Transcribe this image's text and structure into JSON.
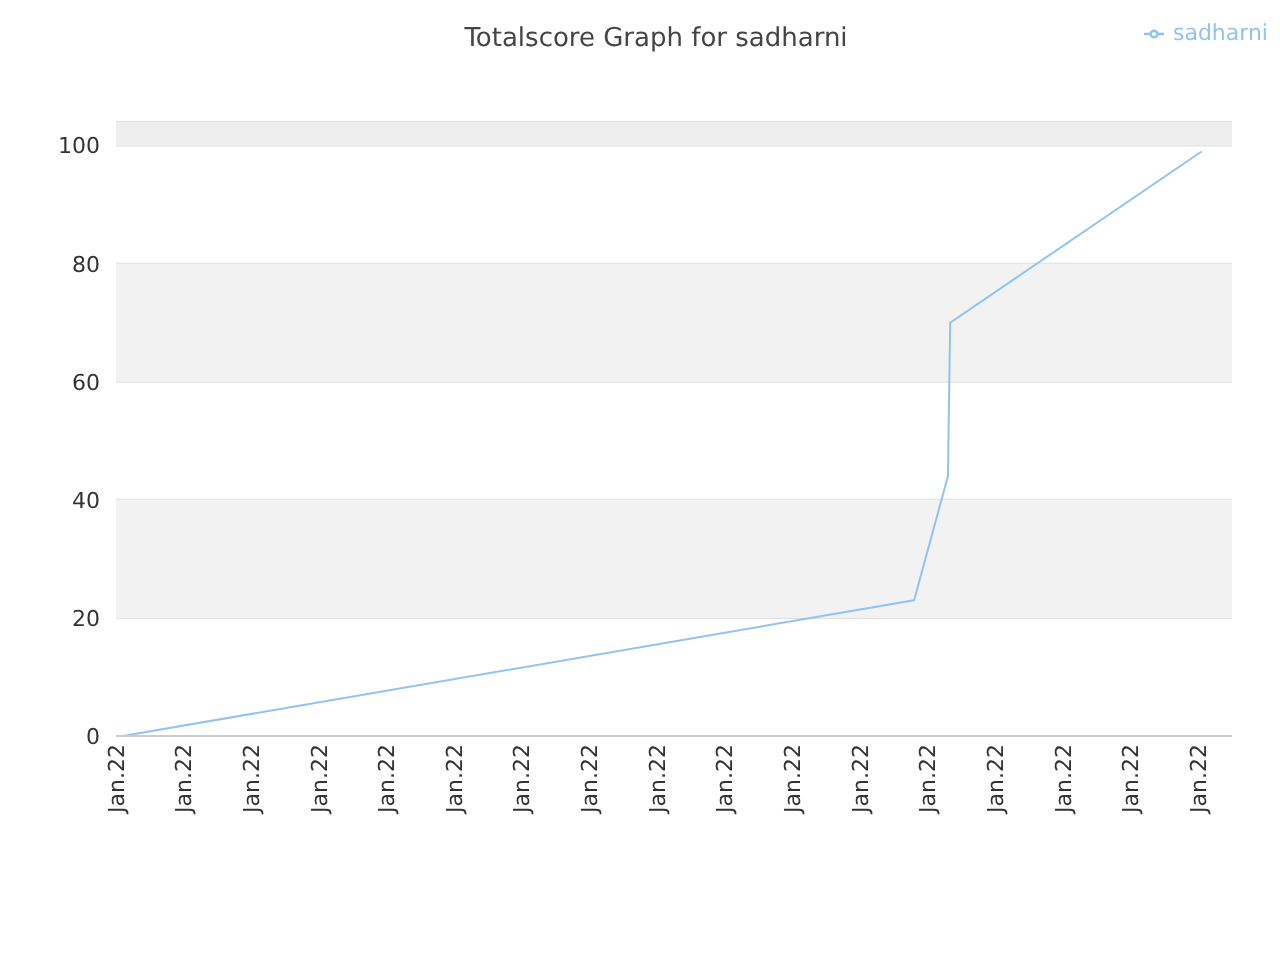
{
  "chart_data": {
    "type": "line",
    "title": "Totalscore Graph for sadharni",
    "x": [
      "--01-22T00:06",
      "--01-22T11:48",
      "--01-22T12:18",
      "--01-22T12:19",
      "--01-22T12:20",
      "--01-22T16:03"
    ],
    "series": [
      {
        "name": "sadharni",
        "color": "#90c3f0",
        "values": [
          0,
          23,
          44,
          57,
          70,
          99
        ]
      }
    ],
    "xlim": [
      "--01-22T00:00",
      "--01-22T16:30"
    ],
    "xticks": [
      {
        "value": "--01-22T00:00",
        "label": "Jan.22"
      },
      {
        "value": "--01-22T01:00",
        "label": "Jan.22"
      },
      {
        "value": "--01-22T02:00",
        "label": "Jan.22"
      },
      {
        "value": "--01-22T03:00",
        "label": "Jan.22"
      },
      {
        "value": "--01-22T04:00",
        "label": "Jan.22"
      },
      {
        "value": "--01-22T05:00",
        "label": "Jan.22"
      },
      {
        "value": "--01-22T06:00",
        "label": "Jan.22"
      },
      {
        "value": "--01-22T07:00",
        "label": "Jan.22"
      },
      {
        "value": "--01-22T08:00",
        "label": "Jan.22"
      },
      {
        "value": "--01-22T09:00",
        "label": "Jan.22"
      },
      {
        "value": "--01-22T10:00",
        "label": "Jan.22"
      },
      {
        "value": "--01-22T11:00",
        "label": "Jan.22"
      },
      {
        "value": "--01-22T12:00",
        "label": "Jan.22"
      },
      {
        "value": "--01-22T13:00",
        "label": "Jan.22"
      },
      {
        "value": "--01-22T14:00",
        "label": "Jan.22"
      },
      {
        "value": "--01-22T15:00",
        "label": "Jan.22"
      },
      {
        "value": "--01-22T16:00",
        "label": "Jan.22"
      }
    ],
    "ylim": [
      0,
      104
    ],
    "yticks": [
      0,
      20,
      40,
      60,
      80,
      100
    ],
    "bands": [
      {
        "axis": "y",
        "from": 20,
        "to": 40,
        "color": "#f2f2f2"
      },
      {
        "axis": "y",
        "from": 60,
        "to": 80,
        "color": "#f2f2f2"
      },
      {
        "axis": "y",
        "from": 100,
        "to": 104,
        "color": "#eeeeee"
      }
    ],
    "grid": "y",
    "legend": "top right",
    "marker": "none",
    "line_style": "solid"
  }
}
